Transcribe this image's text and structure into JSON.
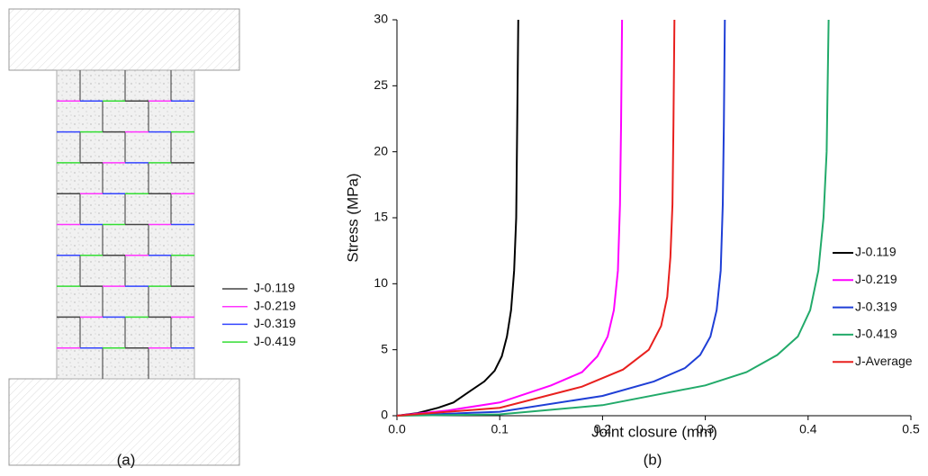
{
  "diagram": {
    "caption": "(a)",
    "legend": [
      {
        "label": "J-0.119",
        "color": "#444444"
      },
      {
        "label": "J-0.219",
        "color": "#ff33ff"
      },
      {
        "label": "J-0.319",
        "color": "#3344ff"
      },
      {
        "label": "J-0.419",
        "color": "#33dd33"
      }
    ]
  },
  "chart_data": {
    "type": "line",
    "caption": "(b)",
    "x_label": "Joint closure (mm)",
    "y_label": "Stress (MPa)",
    "xlim": [
      0,
      0.5
    ],
    "ylim": [
      0,
      30
    ],
    "xticks": [
      {
        "value": 0,
        "label": "0.0"
      },
      0.1,
      0.2,
      0.3,
      0.4,
      0.5
    ],
    "yticks": [
      0,
      5,
      10,
      15,
      20,
      25,
      30
    ],
    "legend": "right",
    "series": [
      {
        "name": "J-0.119",
        "color": "#000000",
        "x": [
          0,
          0.02,
          0.04,
          0.055,
          0.07,
          0.085,
          0.095,
          0.102,
          0.107,
          0.111,
          0.114,
          0.116,
          0.117,
          0.118
        ],
        "values": [
          0,
          0.2,
          0.6,
          1,
          1.8,
          2.6,
          3.4,
          4.5,
          6,
          8,
          11,
          15,
          22,
          30
        ]
      },
      {
        "name": "J-0.219",
        "color": "#ff00ff",
        "x": [
          0,
          0.05,
          0.1,
          0.15,
          0.18,
          0.195,
          0.205,
          0.211,
          0.215,
          0.217,
          0.218,
          0.219
        ],
        "values": [
          0,
          0.4,
          1,
          2.3,
          3.3,
          4.5,
          6,
          8,
          11,
          16,
          22,
          30
        ]
      },
      {
        "name": "J-0.319",
        "color": "#1f3fd6",
        "x": [
          0,
          0.1,
          0.2,
          0.25,
          0.28,
          0.295,
          0.305,
          0.311,
          0.315,
          0.317,
          0.318,
          0.319
        ],
        "values": [
          0,
          0.3,
          1.5,
          2.6,
          3.6,
          4.6,
          6,
          8,
          11,
          16,
          22,
          30
        ]
      },
      {
        "name": "J-0.419",
        "color": "#22aa6a",
        "x": [
          0,
          0.1,
          0.2,
          0.3,
          0.34,
          0.37,
          0.39,
          0.402,
          0.41,
          0.415,
          0.418,
          0.419,
          0.42
        ],
        "values": [
          0,
          0.1,
          0.8,
          2.3,
          3.3,
          4.6,
          6,
          8,
          11,
          15,
          20,
          25,
          30
        ]
      },
      {
        "name": "J-Average",
        "color": "#e8201e",
        "x": [
          0,
          0.1,
          0.18,
          0.22,
          0.245,
          0.257,
          0.263,
          0.266,
          0.268,
          0.269,
          0.27
        ],
        "values": [
          0,
          0.6,
          2.2,
          3.5,
          5,
          6.8,
          9,
          12,
          16,
          22,
          30
        ]
      }
    ]
  }
}
